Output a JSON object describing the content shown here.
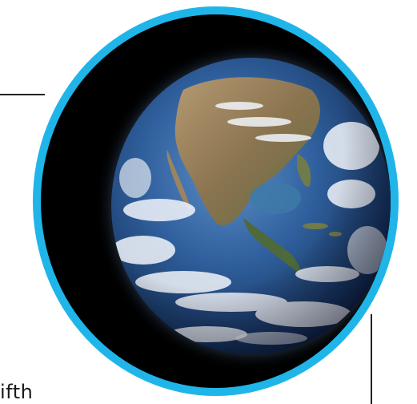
{
  "caption": {
    "text": "ifth"
  },
  "image": {
    "subject": "earth-globe",
    "ring_color": "#1fb5e9",
    "background_color": "#000000",
    "ocean_color": "#2f5f9c"
  }
}
